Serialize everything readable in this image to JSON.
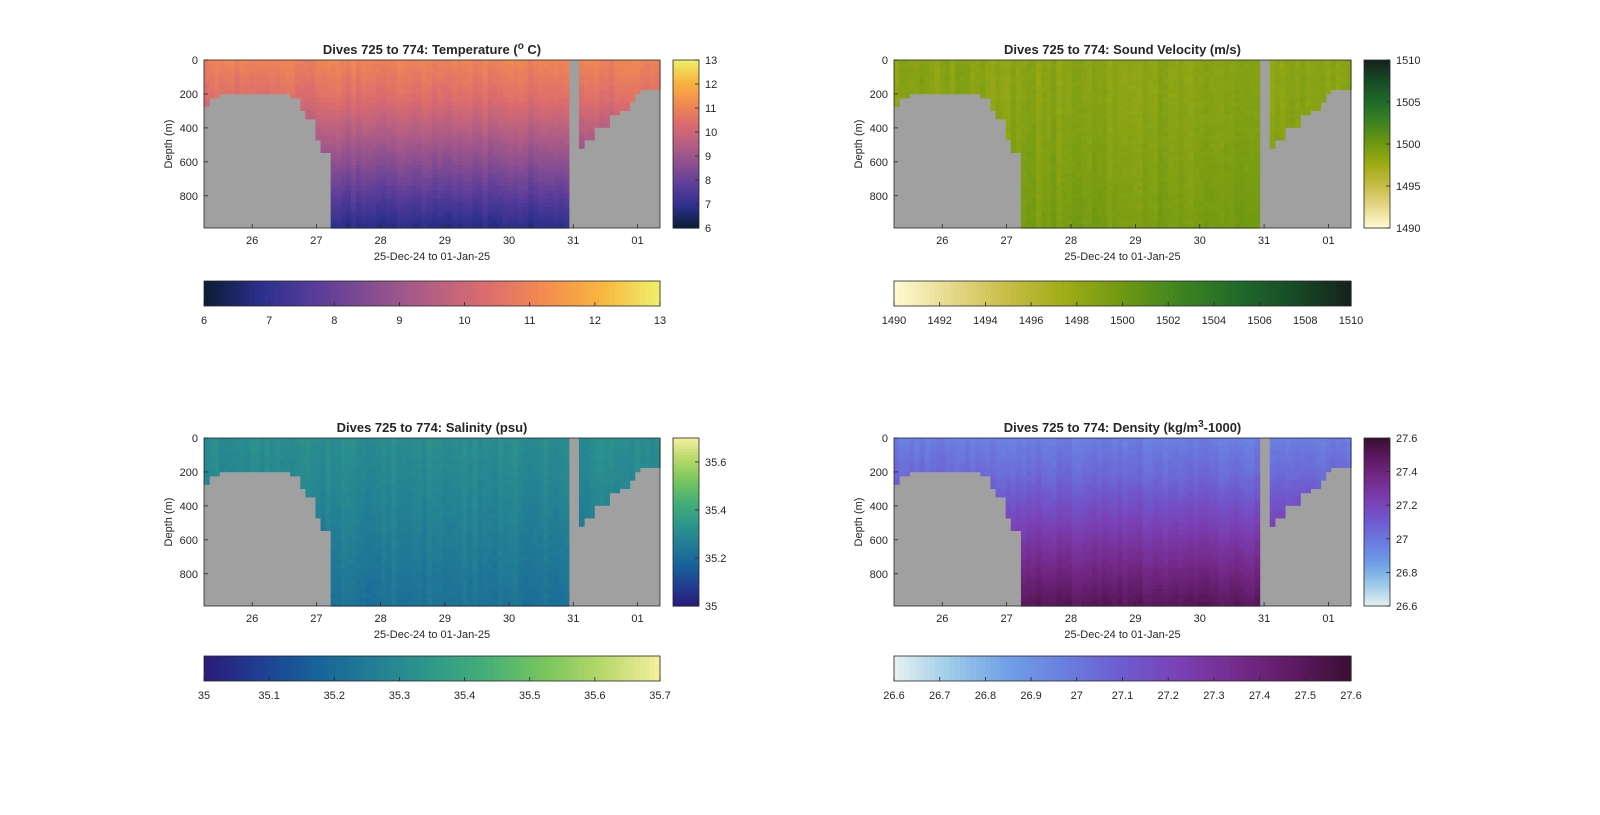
{
  "figure": {
    "background": "#ffffff",
    "mask_color": "#a0a0a0"
  },
  "chart_data": [
    {
      "id": "temperature",
      "type": "heatmap",
      "title_main": "Dives 725 to 774: Temperature (",
      "title_sup": "o",
      "title_tail": " C)",
      "xlabel": "25-Dec-24 to 01-Jan-25",
      "ylabel": "Depth (m)",
      "xticks": [
        "26",
        "27",
        "28",
        "29",
        "30",
        "31",
        "01"
      ],
      "yticks": [
        "0",
        "200",
        "400",
        "600",
        "800"
      ],
      "xlim_days": [
        25.25,
        32.35
      ],
      "ylim_m": [
        0,
        990
      ],
      "colormap": "thermal",
      "color_stops": [
        "#0a1c33",
        "#2c2f8c",
        "#5b3d9a",
        "#8a4f90",
        "#b55f83",
        "#dd6d6c",
        "#f48d4e",
        "#f8b73f",
        "#eef16b"
      ],
      "clim": [
        6,
        13
      ],
      "vertical_colorbar_ticks": [
        "13",
        "12",
        "11",
        "10",
        "9",
        "8",
        "7",
        "6"
      ],
      "horizontal_colorbar_ticks": [
        "6",
        "7",
        "8",
        "9",
        "10",
        "11",
        "12",
        "13"
      ],
      "profile_surface": 11.0,
      "profile_deep": 6.8,
      "profile_thermocline_depth": 230,
      "data_gap_day": [
        30.95,
        31.05
      ]
    },
    {
      "id": "sound_velocity",
      "type": "heatmap",
      "title_main": "Dives 725 to 774: Sound Velocity (m/s)",
      "title_sup": "",
      "title_tail": "",
      "xlabel": "25-Dec-24 to 01-Jan-25",
      "ylabel": "Depth (m)",
      "xticks": [
        "26",
        "27",
        "28",
        "29",
        "30",
        "31",
        "01"
      ],
      "yticks": [
        "0",
        "200",
        "400",
        "600",
        "800"
      ],
      "xlim_days": [
        25.25,
        32.35
      ],
      "ylim_m": [
        0,
        990
      ],
      "colormap": "speed",
      "color_stops": [
        "#fffbd4",
        "#e6d88a",
        "#c6bd45",
        "#9fac16",
        "#6e9812",
        "#3f8420",
        "#206a2a",
        "#174b26",
        "#15221a"
      ],
      "clim": [
        1490,
        1510
      ],
      "vertical_colorbar_ticks": [
        "1510",
        "1505",
        "1500",
        "1495",
        "1490"
      ],
      "horizontal_colorbar_ticks": [
        "1490",
        "1492",
        "1494",
        "1496",
        "1498",
        "1500",
        "1502",
        "1504",
        "1506",
        "1508",
        "1510"
      ],
      "profile_surface": 1498.5,
      "profile_deep": 1499.5,
      "profile_thermocline_depth": 250,
      "data_gap_day": [
        30.95,
        31.05
      ]
    },
    {
      "id": "salinity",
      "type": "heatmap",
      "title_main": "Dives 725 to 774: Salinity (psu)",
      "title_sup": "",
      "title_tail": "",
      "xlabel": "25-Dec-24 to 01-Jan-25",
      "ylabel": "Depth (m)",
      "xticks": [
        "26",
        "27",
        "28",
        "29",
        "30",
        "31",
        "01"
      ],
      "yticks": [
        "0",
        "200",
        "400",
        "600",
        "800"
      ],
      "xlim_days": [
        25.25,
        32.35
      ],
      "ylim_m": [
        0,
        990
      ],
      "colormap": "haline",
      "color_stops": [
        "#2a1a7a",
        "#1f3f92",
        "#17649a",
        "#237f94",
        "#2f998a",
        "#47b076",
        "#79c65d",
        "#b8d96a",
        "#f5ef9e"
      ],
      "clim": [
        35,
        35.7
      ],
      "vertical_colorbar_ticks": [
        "35.6",
        "35.4",
        "35.2",
        "35"
      ],
      "horizontal_colorbar_ticks": [
        "35",
        "35.1",
        "35.2",
        "35.3",
        "35.4",
        "35.5",
        "35.6",
        "35.7"
      ],
      "profile_surface": 35.31,
      "profile_deep": 35.22,
      "profile_thermocline_depth": 200,
      "data_gap_day": [
        30.95,
        31.05
      ]
    },
    {
      "id": "density",
      "type": "heatmap",
      "title_main": "Dives 725 to 774: Density (kg/m",
      "title_sup": "3",
      "title_tail": "-1000)",
      "xlabel": "25-Dec-24 to 01-Jan-25",
      "ylabel": "Depth (m)",
      "xticks": [
        "26",
        "27",
        "28",
        "29",
        "30",
        "31",
        "01"
      ],
      "yticks": [
        "0",
        "200",
        "400",
        "600",
        "800"
      ],
      "xlim_days": [
        25.25,
        32.35
      ],
      "ylim_m": [
        0,
        990
      ],
      "colormap": "dense",
      "color_stops": [
        "#e6f1f1",
        "#9ccbe9",
        "#6f9fe6",
        "#6a7ddf",
        "#6e5cd0",
        "#7a40b4",
        "#752b8c",
        "#5e1a62",
        "#3a0e34"
      ],
      "clim": [
        26.6,
        27.6
      ],
      "vertical_colorbar_ticks": [
        "27.6",
        "27.4",
        "27.2",
        "27",
        "26.8",
        "26.6"
      ],
      "horizontal_colorbar_ticks": [
        "26.6",
        "26.7",
        "26.8",
        "26.9",
        "27",
        "27.1",
        "27.2",
        "27.3",
        "27.4",
        "27.5",
        "27.6"
      ],
      "profile_surface": 26.97,
      "profile_deep": 27.5,
      "profile_thermocline_depth": 220,
      "data_gap_day": [
        30.95,
        31.05
      ]
    }
  ]
}
